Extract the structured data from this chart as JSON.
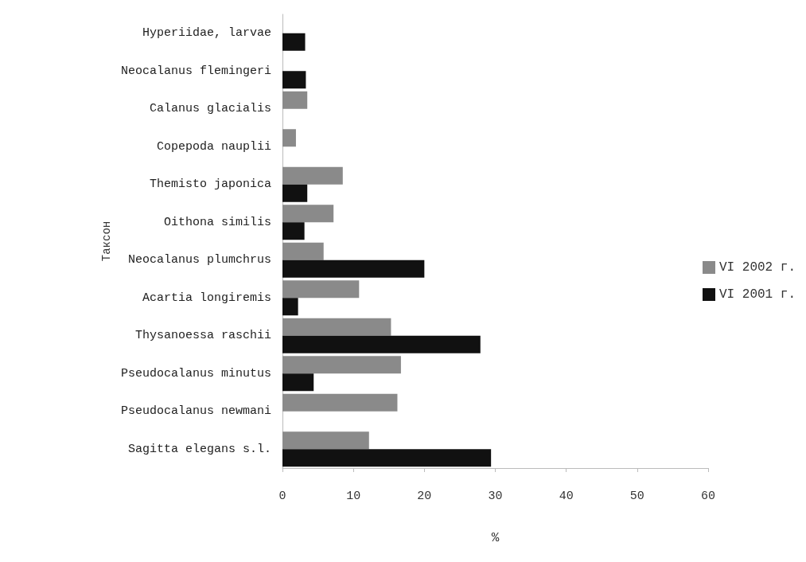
{
  "chart_data": {
    "type": "bar",
    "orientation": "horizontal",
    "xlabel": "%",
    "ylabel": "Таксон",
    "categories": [
      "Hyperiidae, larvae",
      "Neocalanus flemingeri",
      "Calanus glacialis",
      "Copepoda nauplii",
      "Themisto japonica",
      "Oithona similis",
      "Neocalanus plumchrus",
      "Acartia longiremis",
      "Thysanoessa raschii",
      "Pseudocalanus minutus",
      "Pseudocalanus newmani",
      "Sagitta elegans s.l."
    ],
    "series": [
      {
        "name": "VI 2002 г.",
        "color": "#8a8a8a",
        "values": [
          null,
          null,
          3.5,
          1.9,
          8.5,
          7.2,
          5.8,
          10.8,
          15.3,
          16.7,
          16.2,
          12.2
        ]
      },
      {
        "name": "VI 2001 г.",
        "color": "#111111",
        "values": [
          3.2,
          3.3,
          null,
          null,
          3.5,
          3.1,
          20,
          2.2,
          27.9,
          4.4,
          null,
          29.4
        ]
      }
    ],
    "xlim": [
      0,
      60
    ],
    "xticks": [
      0,
      10,
      20,
      30,
      40,
      50,
      60
    ],
    "grid": false,
    "legend": "right"
  }
}
